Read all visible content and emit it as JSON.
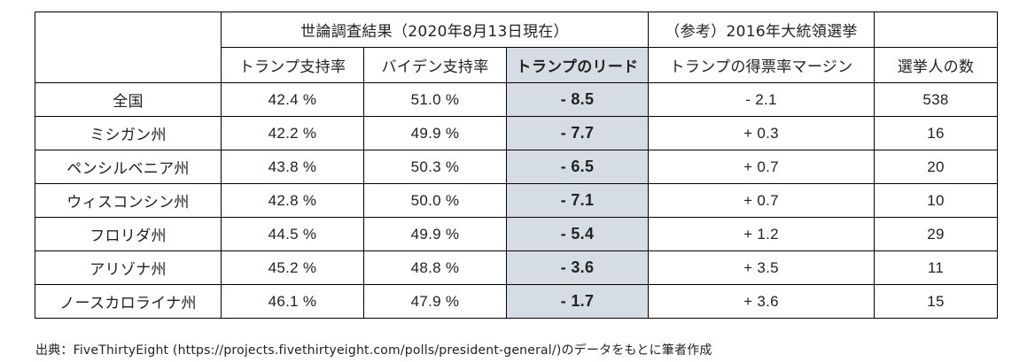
{
  "table": {
    "header_group_poll": "世論調査結果（2020年8月13日現在）",
    "header_group_ref": "（参考）2016年大統領選挙",
    "columns": [
      "トランプ支持率",
      "バイデン支持率",
      "トランプのリード",
      "トランプの得票率マージン",
      "選挙人の数"
    ],
    "rows": [
      {
        "name": "全国",
        "trump": "42.4 %",
        "biden": "51.0 %",
        "lead": "- 8.5",
        "margin": "- 2.1",
        "electors": "538"
      },
      {
        "name": "ミシガン州",
        "trump": "42.2 %",
        "biden": "49.9 %",
        "lead": "- 7.7",
        "margin": "+ 0.3",
        "electors": "16"
      },
      {
        "name": "ペンシルベニア州",
        "trump": "43.8 %",
        "biden": "50.3 %",
        "lead": "- 6.5",
        "margin": "+ 0.7",
        "electors": "20"
      },
      {
        "name": "ウィスコンシン州",
        "trump": "42.8 %",
        "biden": "50.0 %",
        "lead": "- 7.1",
        "margin": "+ 0.7",
        "electors": "10"
      },
      {
        "name": "フロリダ州",
        "trump": "44.5 %",
        "biden": "49.9 %",
        "lead": "- 5.4",
        "margin": "+ 1.2",
        "electors": "29"
      },
      {
        "name": "アリゾナ州",
        "trump": "45.2 %",
        "biden": "48.8 %",
        "lead": "- 3.6",
        "margin": "+ 3.5",
        "electors": "11"
      },
      {
        "name": "ノースカロライナ州",
        "trump": "46.1 %",
        "biden": "47.9 %",
        "lead": "- 1.7",
        "margin": "+ 3.6",
        "electors": "15"
      }
    ],
    "lead_highlight_color": "#d6dce4"
  },
  "source_note": "出典：FiveThirtyEight (https://projects.fivethirtyeight.com/polls/president-general/)のデータをもとに筆者作成"
}
